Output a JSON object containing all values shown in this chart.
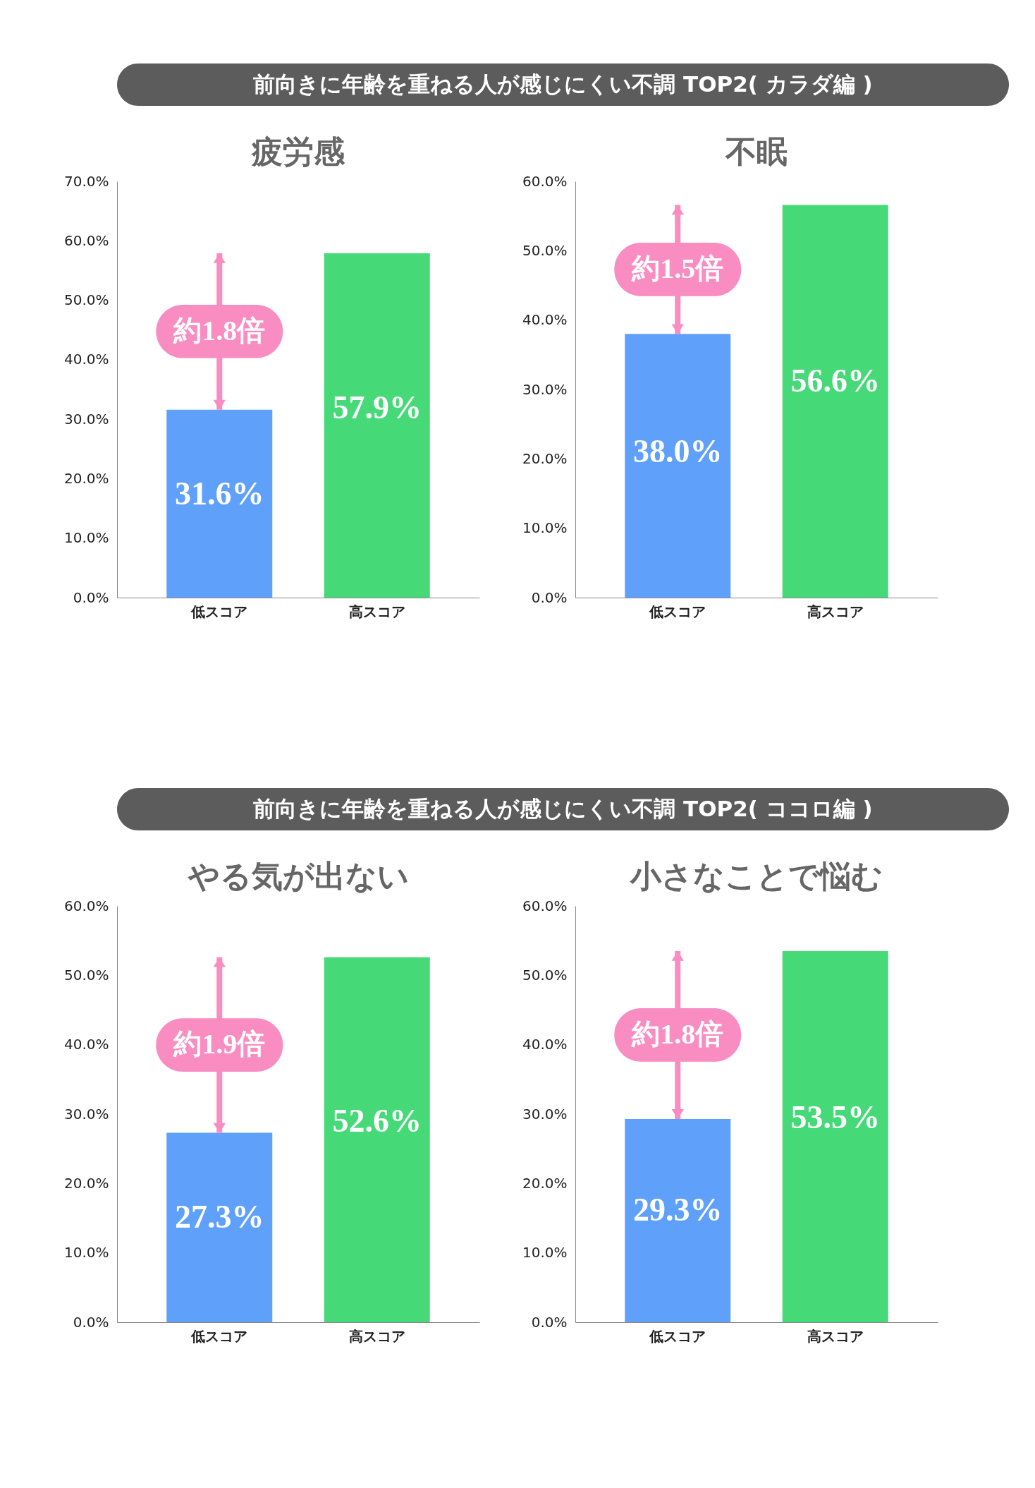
{
  "chart_data": [
    {
      "type": "other",
      "title": "前向きに年齢を重ねる人が感じにくい不調 TOP2( カラダ編 )"
    },
    {
      "type": "bar",
      "title": "疲労感",
      "categories": [
        "低スコア",
        "高スコア"
      ],
      "values": [
        31.6,
        57.9
      ],
      "colors": [
        "#5fa0fb",
        "#46d978"
      ],
      "value_labels": [
        "31.6%",
        "57.9%"
      ],
      "ylim": [
        0,
        70
      ],
      "yticks": [
        {
          "value": 0,
          "label": "0.0%"
        },
        {
          "value": 10,
          "label": "10.0%"
        },
        {
          "value": 20,
          "label": "20.0%"
        },
        {
          "value": 30,
          "label": "30.0%"
        },
        {
          "value": 40,
          "label": "40.0%"
        },
        {
          "value": 50,
          "label": "50.0%"
        },
        {
          "value": 60,
          "label": "60.0%"
        },
        {
          "value": 70,
          "label": "70.0%"
        }
      ],
      "annotations": [
        "約1.8倍"
      ]
    },
    {
      "type": "bar",
      "title": "不眠",
      "categories": [
        "低スコア",
        "高スコア"
      ],
      "values": [
        38.0,
        56.6
      ],
      "colors": [
        "#5fa0fb",
        "#46d978"
      ],
      "value_labels": [
        "38.0%",
        "56.6%"
      ],
      "ylim": [
        0,
        60
      ],
      "yticks": [
        {
          "value": 0,
          "label": "0.0%"
        },
        {
          "value": 10,
          "label": "10.0%"
        },
        {
          "value": 20,
          "label": "20.0%"
        },
        {
          "value": 30,
          "label": "30.0%"
        },
        {
          "value": 40,
          "label": "40.0%"
        },
        {
          "value": 50,
          "label": "50.0%"
        },
        {
          "value": 60,
          "label": "60.0%"
        }
      ],
      "annotations": [
        "約1.5倍"
      ]
    },
    {
      "type": "other",
      "title": "前向きに年齢を重ねる人が感じにくい不調 TOP2( ココロ編 )"
    },
    {
      "type": "bar",
      "title": "やる気が出ない",
      "categories": [
        "低スコア",
        "高スコア"
      ],
      "values": [
        27.3,
        52.6
      ],
      "colors": [
        "#5fa0fb",
        "#46d978"
      ],
      "value_labels": [
        "27.3%",
        "52.6%"
      ],
      "ylim": [
        0,
        60
      ],
      "yticks": [
        {
          "value": 0,
          "label": "0.0%"
        },
        {
          "value": 10,
          "label": "10.0%"
        },
        {
          "value": 20,
          "label": "20.0%"
        },
        {
          "value": 30,
          "label": "30.0%"
        },
        {
          "value": 40,
          "label": "40.0%"
        },
        {
          "value": 50,
          "label": "50.0%"
        },
        {
          "value": 60,
          "label": "60.0%"
        }
      ],
      "annotations": [
        "約1.9倍"
      ]
    },
    {
      "type": "bar",
      "title": "小さなことで悩む",
      "categories": [
        "低スコア",
        "高スコア"
      ],
      "values": [
        29.3,
        53.5
      ],
      "colors": [
        "#5fa0fb",
        "#46d978"
      ],
      "value_labels": [
        "29.3%",
        "53.5%"
      ],
      "ylim": [
        0,
        60
      ],
      "yticks": [
        {
          "value": 0,
          "label": "0.0%"
        },
        {
          "value": 10,
          "label": "10.0%"
        },
        {
          "value": 20,
          "label": "20.0%"
        },
        {
          "value": 30,
          "label": "30.0%"
        },
        {
          "value": 40,
          "label": "40.0%"
        },
        {
          "value": 50,
          "label": "50.0%"
        },
        {
          "value": 60,
          "label": "60.0%"
        }
      ],
      "annotations": [
        "約1.8倍"
      ]
    }
  ]
}
